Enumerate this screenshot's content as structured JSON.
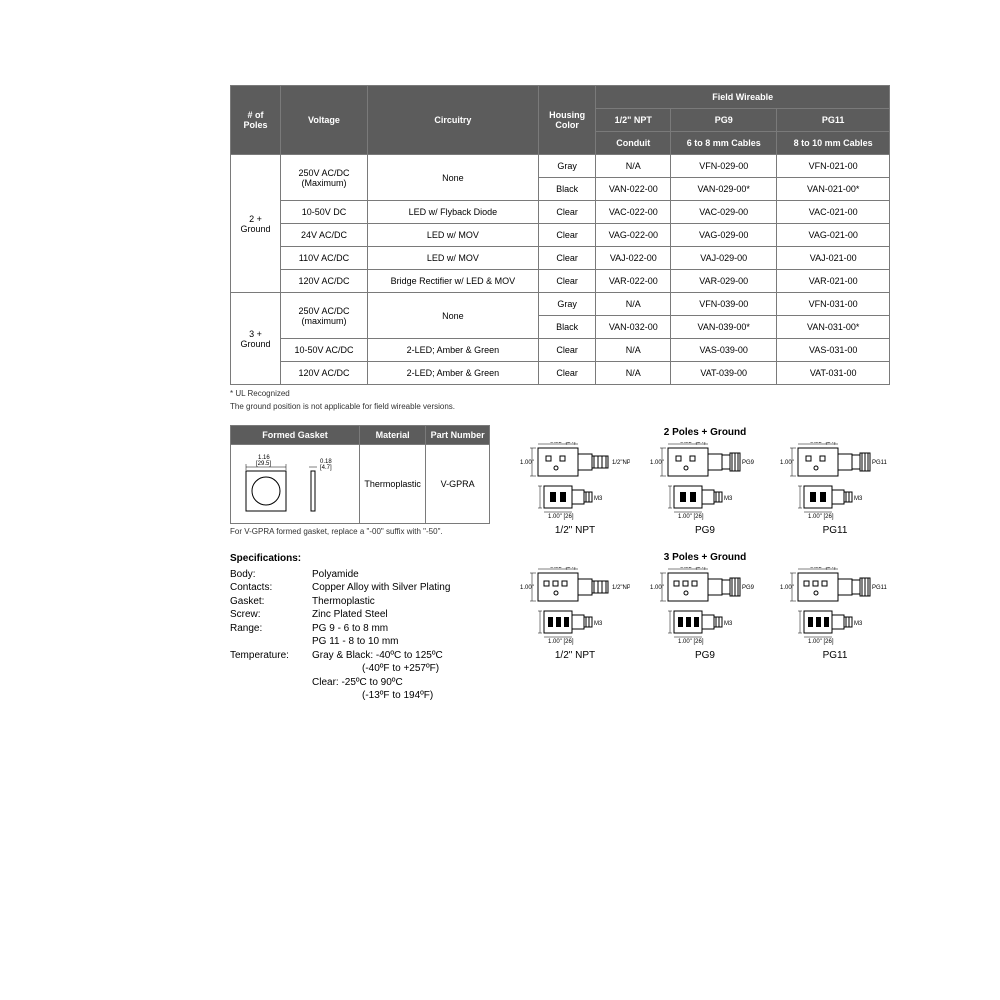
{
  "mainTable": {
    "header": {
      "poles": "# of\nPoles",
      "voltage": "Voltage",
      "circuitry": "Circuitry",
      "housing": "Housing\nColor",
      "fieldWireable": "Field Wireable",
      "npt": "1/2\" NPT",
      "pg9": "PG9",
      "pg11": "PG11",
      "conduit": "Conduit",
      "cables68": "6 to 8 mm Cables",
      "cables810": "8 to 10 mm Cables"
    },
    "group2": "2 +\nGround",
    "group3": "3 +\nGround",
    "rows": [
      {
        "voltage": "250V AC/DC\n(Maximum)",
        "circ": "None",
        "color": "Gray",
        "c1": "N/A",
        "c2": "VFN-029-00",
        "c3": "VFN-021-00",
        "vspan": 2,
        "cspan": 2
      },
      {
        "color": "Black",
        "c1": "VAN-022-00",
        "c2": "VAN-029-00*",
        "c3": "VAN-021-00*"
      },
      {
        "voltage": "10-50V DC",
        "circ": "LED w/ Flyback Diode",
        "color": "Clear",
        "c1": "VAC-022-00",
        "c2": "VAC-029-00",
        "c3": "VAC-021-00"
      },
      {
        "voltage": "24V AC/DC",
        "circ": "LED w/ MOV",
        "color": "Clear",
        "c1": "VAG-022-00",
        "c2": "VAG-029-00",
        "c3": "VAG-021-00"
      },
      {
        "voltage": "110V AC/DC",
        "circ": "LED w/ MOV",
        "color": "Clear",
        "c1": "VAJ-022-00",
        "c2": "VAJ-029-00",
        "c3": "VAJ-021-00"
      },
      {
        "voltage": "120V AC/DC",
        "circ": "Bridge Rectifier w/ LED & MOV",
        "color": "Clear",
        "c1": "VAR-022-00",
        "c2": "VAR-029-00",
        "c3": "VAR-021-00"
      },
      {
        "voltage": "250V AC/DC\n(maximum)",
        "circ": "None",
        "color": "Gray",
        "c1": "N/A",
        "c2": "VFN-039-00",
        "c3": "VFN-031-00",
        "vspan": 2,
        "cspan": 2
      },
      {
        "color": "Black",
        "c1": "VAN-032-00",
        "c2": "VAN-039-00*",
        "c3": "VAN-031-00*"
      },
      {
        "voltage": "10-50V AC/DC",
        "circ": "2-LED; Amber & Green",
        "color": "Clear",
        "c1": "N/A",
        "c2": "VAS-039-00",
        "c3": "VAS-031-00"
      },
      {
        "voltage": "120V AC/DC",
        "circ": "2-LED; Amber & Green",
        "color": "Clear",
        "c1": "N/A",
        "c2": "VAT-039-00",
        "c3": "VAT-031-00"
      }
    ]
  },
  "footnotes": {
    "ul": "* UL Recognized",
    "ground": "The ground position is not applicable for field wireable versions."
  },
  "gasketTable": {
    "h1": "Formed Gasket",
    "h2": "Material",
    "h3": "Part Number",
    "material": "Thermoplastic",
    "part": "V-GPRA",
    "dim1a": "1.16",
    "dim1b": "[29.5]",
    "dim2a": "0.18",
    "dim2b": "[4.7]",
    "note": "For V-GPRA formed gasket, replace a \"-00\" suffix with \"-50\"."
  },
  "specs": {
    "title": "Specifications:",
    "rows": [
      {
        "label": "Body:",
        "value": "Polyamide"
      },
      {
        "label": "Contacts:",
        "value": "Copper Alloy with Silver Plating"
      },
      {
        "label": "Gasket:",
        "value": "Thermoplastic"
      },
      {
        "label": "Screw:",
        "value": "Zinc Plated Steel"
      },
      {
        "label": "Range:",
        "value": "PG 9 - 6 to 8 mm"
      },
      {
        "label": "",
        "value": "PG 11 - 8 to 10 mm"
      },
      {
        "label": "Temperature:",
        "value": "Gray & Black: -40ºC to 125ºC"
      },
      {
        "label": "",
        "value": "(-40ºF to +257ºF)",
        "indent": true
      },
      {
        "label": "",
        "value": "Clear: -25ºC to 90ºC"
      },
      {
        "label": "",
        "value": "(-13ºF to 194ºF)",
        "indent": true
      }
    ]
  },
  "diagrams": {
    "section1": "2 Poles + Ground",
    "section2": "3 Poles + Ground",
    "labels": [
      "1/2\" NPT",
      "PG9",
      "PG11"
    ]
  },
  "colors": {
    "headerBg": "#5c5c5c",
    "headerText": "#ffffff",
    "border": "#7a7a7a",
    "text": "#000000"
  }
}
